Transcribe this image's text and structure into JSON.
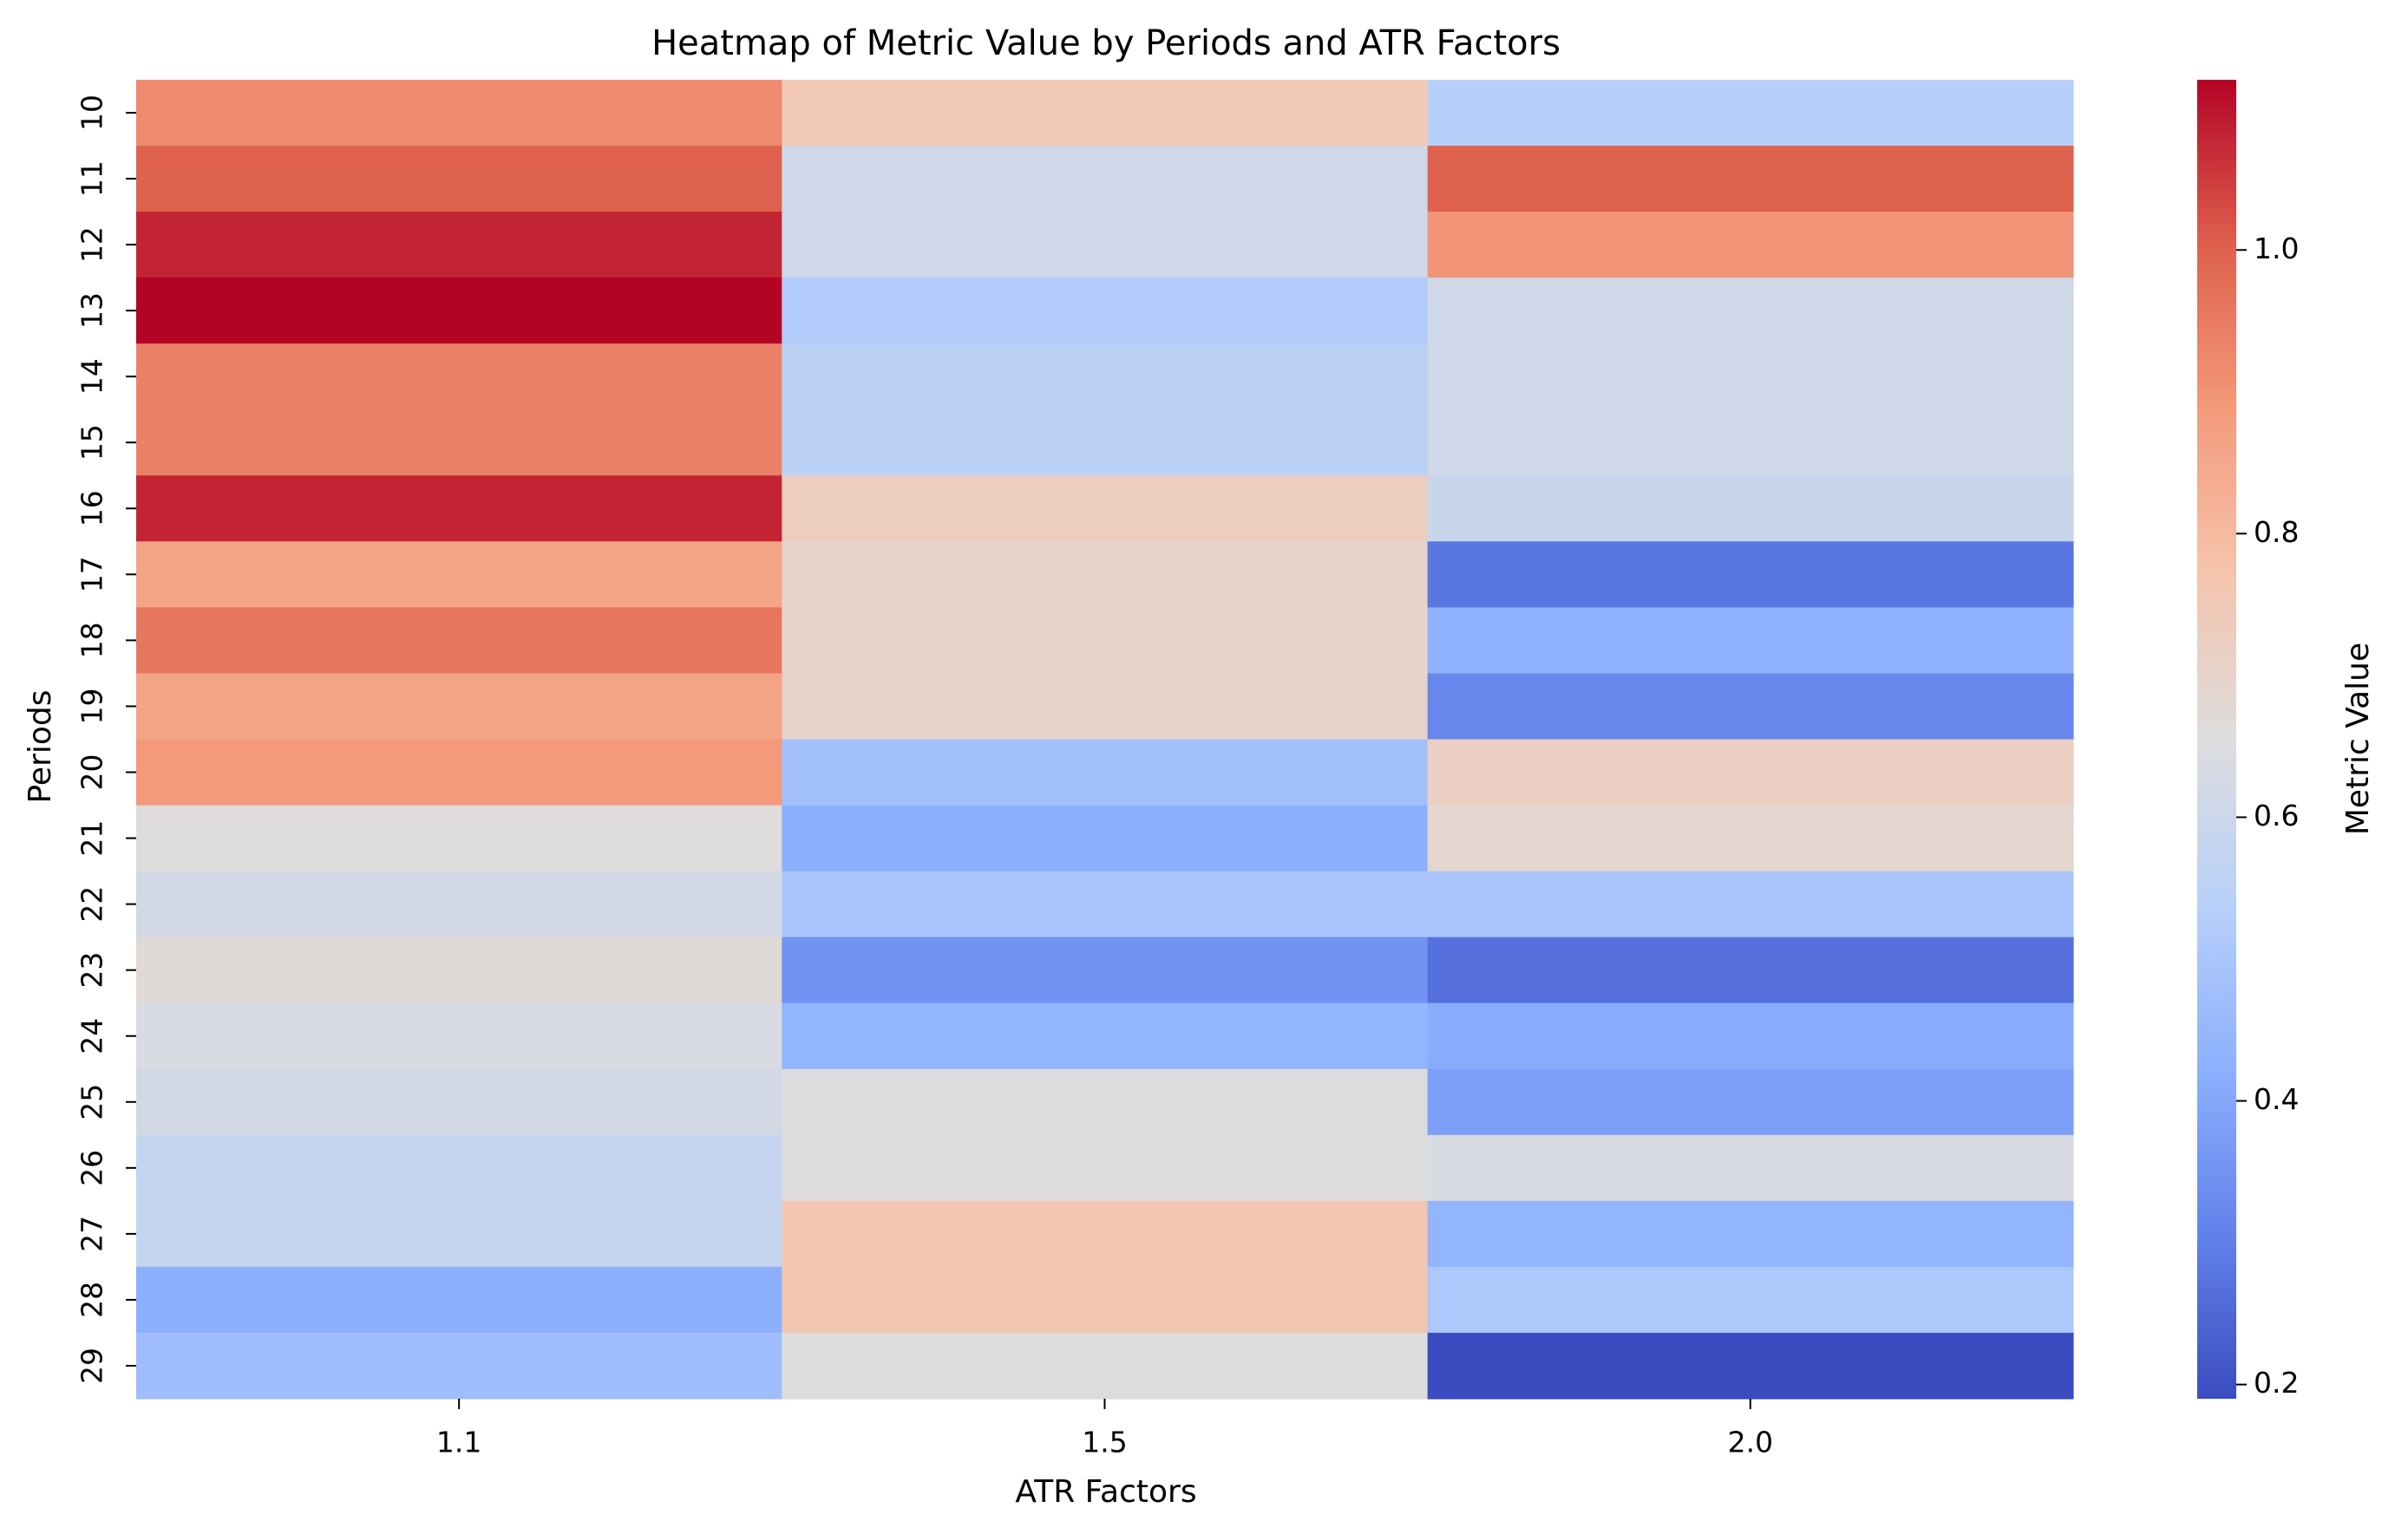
{
  "chart_data": {
    "type": "heatmap",
    "title": "Heatmap of Metric Value by Periods and ATR Factors",
    "xlabel": "ATR Factors",
    "ylabel": "Periods",
    "colorbar_label": "Metric Value",
    "colormap": "coolwarm",
    "vmin": 0.19,
    "vmax": 1.12,
    "colorbar_ticks": [
      "0.2",
      "0.4",
      "0.6",
      "0.8",
      "1.0"
    ],
    "x": [
      "1.1",
      "1.5",
      "2.0"
    ],
    "y": [
      "10",
      "11",
      "12",
      "13",
      "14",
      "15",
      "16",
      "17",
      "18",
      "19",
      "20",
      "21",
      "22",
      "23",
      "24",
      "25",
      "26",
      "27",
      "28",
      "29"
    ],
    "values": [
      [
        0.92,
        0.75,
        0.54
      ],
      [
        1.0,
        0.61,
        1.0
      ],
      [
        1.08,
        0.61,
        0.9
      ],
      [
        1.12,
        0.52,
        0.61
      ],
      [
        0.94,
        0.55,
        0.61
      ],
      [
        0.94,
        0.55,
        0.61
      ],
      [
        1.08,
        0.73,
        0.59
      ],
      [
        0.86,
        0.7,
        0.28
      ],
      [
        0.96,
        0.7,
        0.43
      ],
      [
        0.86,
        0.7,
        0.32
      ],
      [
        0.89,
        0.48,
        0.72
      ],
      [
        0.66,
        0.42,
        0.69
      ],
      [
        0.62,
        0.5,
        0.5
      ],
      [
        0.67,
        0.35,
        0.27
      ],
      [
        0.64,
        0.44,
        0.41
      ],
      [
        0.62,
        0.65,
        0.38
      ],
      [
        0.58,
        0.66,
        0.64
      ],
      [
        0.58,
        0.76,
        0.44
      ],
      [
        0.42,
        0.76,
        0.51
      ],
      [
        0.47,
        0.66,
        0.19
      ]
    ]
  }
}
